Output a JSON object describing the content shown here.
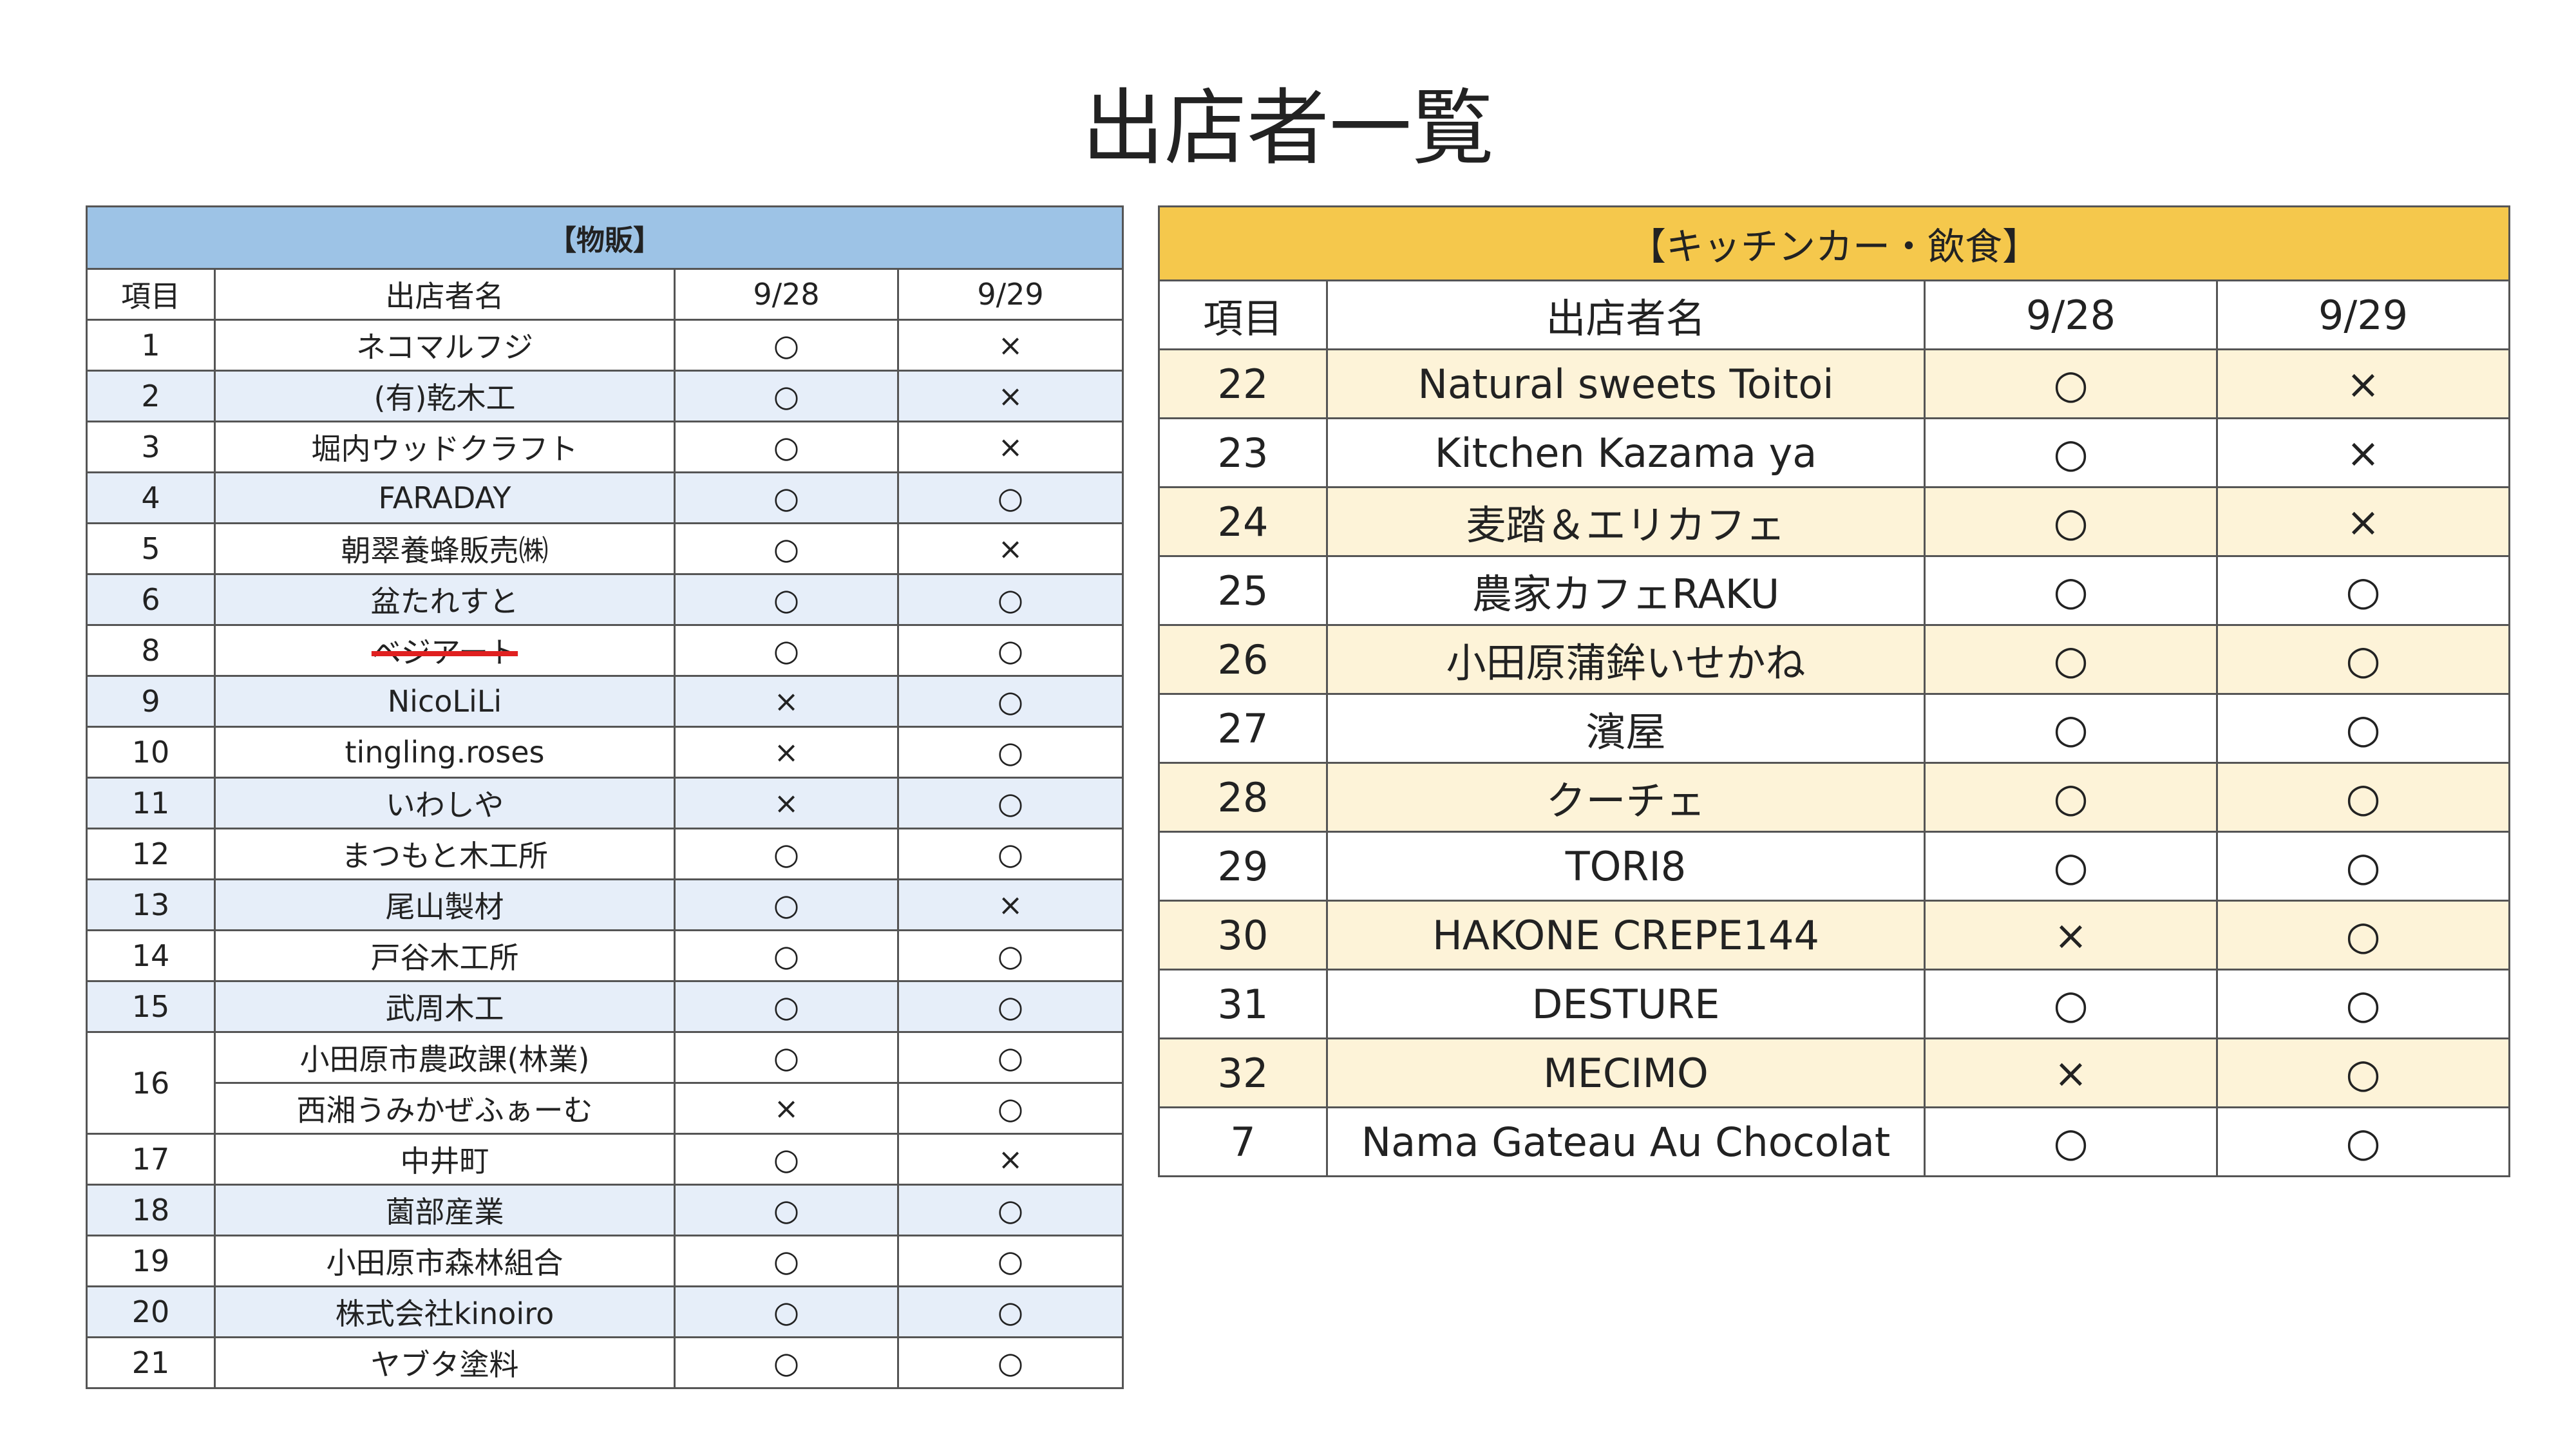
{
  "title": "出店者一覧",
  "left": {
    "title": "【物販】",
    "header_fill": "#9dc3e6",
    "columns": [
      "項目",
      "出店者名",
      "9/28",
      "9/29"
    ],
    "rows": [
      {
        "no": "1",
        "vendors": [
          [
            "ネコマルフジ",
            "○",
            "×"
          ]
        ]
      },
      {
        "no": "2",
        "fill": "#e6eef9",
        "vendors": [
          [
            "(有)乾木工",
            "○",
            "×"
          ]
        ]
      },
      {
        "no": "3",
        "vendors": [
          [
            "堀内ウッドクラフト",
            "○",
            "×"
          ]
        ]
      },
      {
        "no": "4",
        "fill": "#e6eef9",
        "vendors": [
          [
            "FARADAY",
            "○",
            "○"
          ]
        ]
      },
      {
        "no": "5",
        "vendors": [
          [
            "朝翠養蜂販売㈱",
            "○",
            "×"
          ]
        ]
      },
      {
        "no": "6",
        "fill": "#e6eef9",
        "vendors": [
          [
            "盆たれすと",
            "○",
            "○"
          ]
        ]
      },
      {
        "no": "8",
        "strike": "#e02020",
        "vendors": [
          [
            "ベジアート",
            "○",
            "○"
          ]
        ]
      },
      {
        "no": "9",
        "fill": "#e6eef9",
        "vendors": [
          [
            "NicoLiLi",
            "×",
            "○"
          ]
        ]
      },
      {
        "no": "10",
        "vendors": [
          [
            "tingling.roses",
            "×",
            "○"
          ]
        ]
      },
      {
        "no": "11",
        "fill": "#e6eef9",
        "vendors": [
          [
            "いわしや",
            "×",
            "○"
          ]
        ]
      },
      {
        "no": "12",
        "vendors": [
          [
            "まつもと木工所",
            "○",
            "○"
          ]
        ]
      },
      {
        "no": "13",
        "fill": "#e6eef9",
        "vendors": [
          [
            "尾山製材",
            "○",
            "×"
          ]
        ]
      },
      {
        "no": "14",
        "vendors": [
          [
            "戸谷木工所",
            "○",
            "○"
          ]
        ]
      },
      {
        "no": "15",
        "fill": "#e6eef9",
        "vendors": [
          [
            "武周木工",
            "○",
            "○"
          ]
        ]
      },
      {
        "no": "16",
        "vendors": [
          [
            "小田原市農政課(林業)",
            "○",
            "○"
          ],
          [
            "西湘うみかぜふぁーむ",
            "×",
            "○"
          ]
        ]
      },
      {
        "no": "17",
        "vendors": [
          [
            "中井町",
            "○",
            "×"
          ]
        ]
      },
      {
        "no": "18",
        "fill": "#e6eef9",
        "vendors": [
          [
            "薗部産業",
            "○",
            "○"
          ]
        ]
      },
      {
        "no": "19",
        "vendors": [
          [
            "小田原市森林組合",
            "○",
            "○"
          ]
        ]
      },
      {
        "no": "20",
        "fill": "#e6eef9",
        "vendors": [
          [
            "株式会社kinoiro",
            "○",
            "○"
          ]
        ]
      },
      {
        "no": "21",
        "vendors": [
          [
            "ヤブタ塗料",
            "○",
            "○"
          ]
        ]
      }
    ]
  },
  "right": {
    "title": "【キッチンカー・飲食】",
    "header_fill": "#f5c84c",
    "columns": [
      "項目",
      "出店者名",
      "9/28",
      "9/29"
    ],
    "rows": [
      {
        "no": "22",
        "fill": "#fdf3d8",
        "vendors": [
          [
            "Natural sweets Toitoi",
            "○",
            "×"
          ]
        ]
      },
      {
        "no": "23",
        "vendors": [
          [
            "Kitchen Kazama ya",
            "○",
            "×"
          ]
        ]
      },
      {
        "no": "24",
        "fill": "#fdf3d8",
        "vendors": [
          [
            "麦踏＆エリカフェ",
            "○",
            "×"
          ]
        ]
      },
      {
        "no": "25",
        "vendors": [
          [
            "農家カフェRAKU",
            "○",
            "○"
          ]
        ]
      },
      {
        "no": "26",
        "fill": "#fdf3d8",
        "vendors": [
          [
            "小田原蒲鉾いせかね",
            "○",
            "○"
          ]
        ]
      },
      {
        "no": "27",
        "vendors": [
          [
            "濱屋",
            "○",
            "○"
          ]
        ]
      },
      {
        "no": "28",
        "fill": "#fdf3d8",
        "vendors": [
          [
            "クーチェ",
            "○",
            "○"
          ]
        ]
      },
      {
        "no": "29",
        "vendors": [
          [
            "TORI8",
            "○",
            "○"
          ]
        ]
      },
      {
        "no": "30",
        "fill": "#fdf3d8",
        "vendors": [
          [
            "HAKONE CREPE144",
            "×",
            "○"
          ]
        ]
      },
      {
        "no": "31",
        "vendors": [
          [
            "DESTURE",
            "○",
            "○"
          ]
        ]
      },
      {
        "no": "32",
        "fill": "#fdf3d8",
        "vendors": [
          [
            "MECIMO",
            "×",
            "○"
          ]
        ]
      },
      {
        "no": "7",
        "vendors": [
          [
            "Nama Gateau Au Chocolat",
            "○",
            "○"
          ]
        ]
      }
    ]
  }
}
